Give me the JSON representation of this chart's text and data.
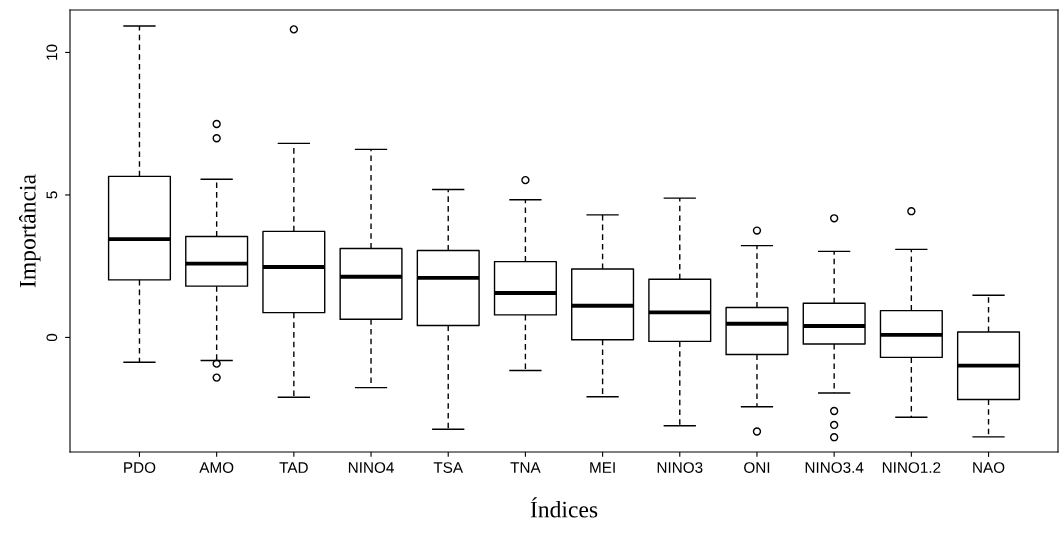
{
  "chart_data": {
    "type": "box",
    "xlabel": "Índices",
    "ylabel": "Importância",
    "categories": [
      "PDO",
      "AMO",
      "TAD",
      "NINO4",
      "TSA",
      "TNA",
      "MEI",
      "NINO3",
      "ONI",
      "NINO3.4",
      "NINO1.2",
      "NAO"
    ],
    "boxes": [
      {
        "low": -0.87,
        "q1": 2.02,
        "median": 3.45,
        "q3": 5.65,
        "high": 10.93
      },
      {
        "low": -0.81,
        "q1": 1.8,
        "median": 2.59,
        "q3": 3.54,
        "high": 5.55,
        "outliers": [
          7.49,
          6.99,
          -0.92,
          -1.41
        ]
      },
      {
        "low": -2.1,
        "q1": 0.87,
        "median": 2.47,
        "q3": 3.72,
        "high": 6.81,
        "outliers": [
          10.81
        ]
      },
      {
        "low": -1.76,
        "q1": 0.64,
        "median": 2.13,
        "q3": 3.12,
        "high": 6.6
      },
      {
        "low": -3.22,
        "q1": 0.42,
        "median": 2.09,
        "q3": 3.05,
        "high": 5.19
      },
      {
        "low": -1.16,
        "q1": 0.79,
        "median": 1.56,
        "q3": 2.66,
        "high": 4.83,
        "outliers": [
          5.52
        ]
      },
      {
        "low": -2.08,
        "q1": -0.08,
        "median": 1.11,
        "q3": 2.4,
        "high": 4.3
      },
      {
        "low": -3.1,
        "q1": -0.14,
        "median": 0.88,
        "q3": 2.04,
        "high": 4.89
      },
      {
        "low": -2.43,
        "q1": -0.6,
        "median": 0.48,
        "q3": 1.05,
        "high": 3.22,
        "outliers": [
          3.75,
          -3.3
        ]
      },
      {
        "low": -1.95,
        "q1": -0.23,
        "median": 0.4,
        "q3": 1.2,
        "high": 3.02,
        "outliers": [
          4.18,
          -2.58,
          -3.07,
          -3.5
        ]
      },
      {
        "low": -2.8,
        "q1": -0.7,
        "median": 0.09,
        "q3": 0.94,
        "high": 3.09,
        "outliers": [
          4.43
        ]
      },
      {
        "low": -3.49,
        "q1": -2.18,
        "median": -0.99,
        "q3": 0.19,
        "high": 1.48
      }
    ],
    "ylim": [
      -4.02,
      11.49
    ],
    "yticks": [
      0,
      5,
      10
    ],
    "grid": false,
    "legend": false,
    "marker": "circle"
  }
}
